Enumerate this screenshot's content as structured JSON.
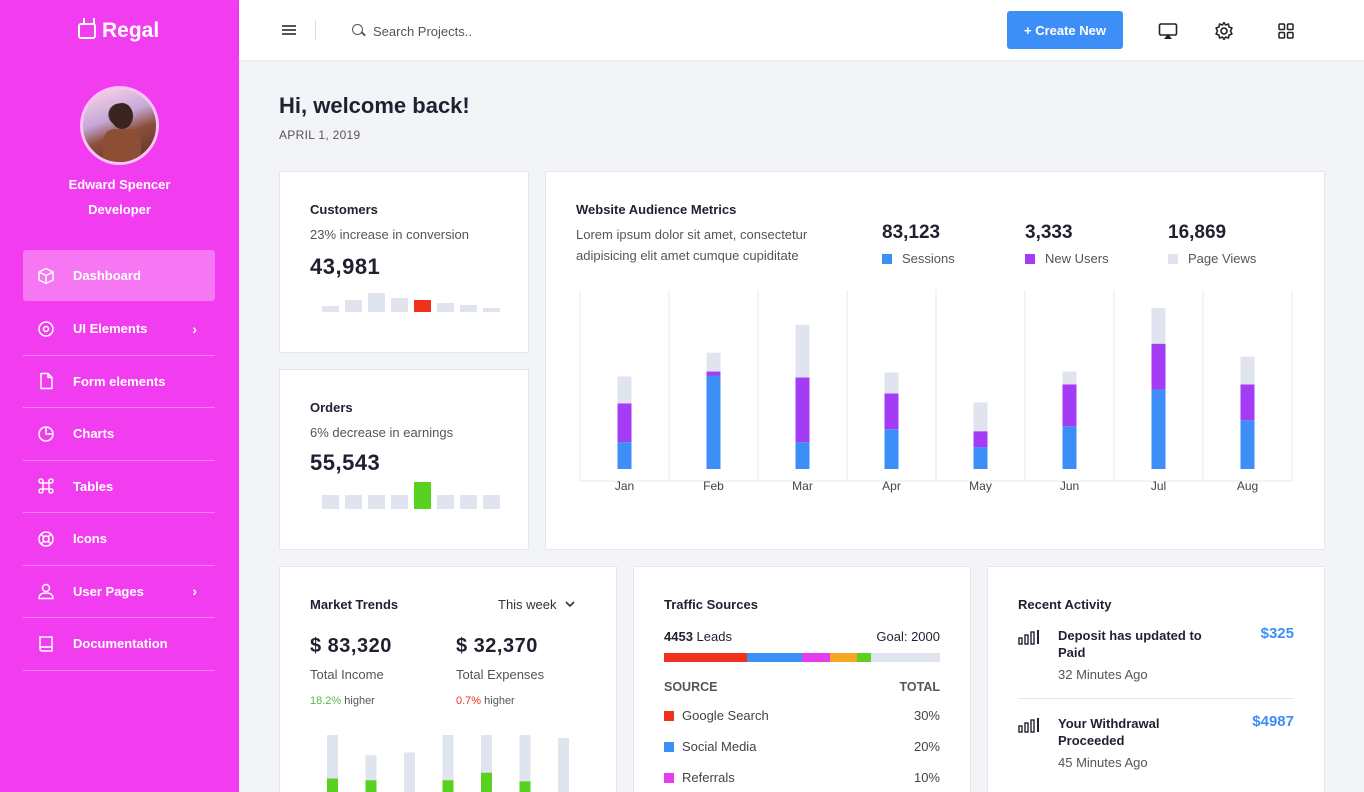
{
  "brand": "Regal",
  "user": {
    "name": "Edward Spencer",
    "role": "Developer"
  },
  "nav": [
    {
      "label": "Dashboard",
      "icon": "cube-icon",
      "active": true,
      "chevron": false
    },
    {
      "label": "UI Elements",
      "icon": "target-icon",
      "chevron": true
    },
    {
      "label": "Form elements",
      "icon": "file-icon",
      "chevron": false
    },
    {
      "label": "Charts",
      "icon": "pie-chart-icon",
      "chevron": false
    },
    {
      "label": "Tables",
      "icon": "command-icon",
      "chevron": false
    },
    {
      "label": "Icons",
      "icon": "life-buoy-icon",
      "chevron": false
    },
    {
      "label": "User Pages",
      "icon": "user-icon",
      "chevron": true
    },
    {
      "label": "Documentation",
      "icon": "book-icon",
      "chevron": false
    }
  ],
  "chevron_glyph": "›",
  "topbar": {
    "search_placeholder": "Search Projects..",
    "create_label": "+ Create New"
  },
  "greeting": "Hi, welcome back!",
  "date": "APRIL 1, 2019",
  "customers": {
    "title": "Customers",
    "subtitle": "23% increase in conversion",
    "value": "43,981",
    "bars": [
      0.25,
      0.55,
      0.85,
      0.65,
      0.55,
      0.4,
      0.3,
      0.2
    ],
    "highlight": 4,
    "highlight_color": "#f0311c"
  },
  "orders": {
    "title": "Orders",
    "subtitle": "6% decrease in earnings",
    "value": "55,543",
    "bars": [
      0.5,
      0.5,
      0.5,
      0.5,
      1.0,
      0.5,
      0.5,
      0.5
    ],
    "highlight": 4,
    "highlight_color": "#58d120"
  },
  "audience": {
    "title": "Website Audience Metrics",
    "desc_line1": "Lorem ipsum dolor sit amet, consectetur",
    "desc_line2": "adipisicing elit amet cumque cupiditate",
    "metrics": [
      {
        "value": "83,123",
        "label": "Sessions",
        "color": "#3d8ef7"
      },
      {
        "value": "3,333",
        "label": "New Users",
        "color": "#a43cf5"
      },
      {
        "value": "16,869",
        "label": "Page Views",
        "color": "#e0e4ee"
      }
    ]
  },
  "chart_data": {
    "type": "bar",
    "stacked": true,
    "categories": [
      "Jan",
      "Feb",
      "Mar",
      "Apr",
      "May",
      "Jun",
      "Jul",
      "Aug"
    ],
    "series": [
      {
        "name": "Sessions",
        "color": "#3d8ef7",
        "values": [
          27,
          94,
          27,
          40,
          22,
          43,
          80,
          49
        ]
      },
      {
        "name": "New Users",
        "color": "#a43cf5",
        "values": [
          39,
          4,
          65,
          36,
          16,
          42,
          46,
          36
        ]
      },
      {
        "name": "Page Views",
        "color": "#e0e4ee",
        "values": [
          27,
          19,
          53,
          21,
          29,
          13,
          36,
          28
        ]
      }
    ],
    "ylim": [
      0,
      180
    ]
  },
  "market": {
    "title": "Market Trends",
    "period": "This week",
    "income": "$ 83,320",
    "income_label": "Total Income",
    "income_pct": "18.2%",
    "income_suffix": "higher",
    "expense": "$ 32,370",
    "expense_label": "Total Expenses",
    "expense_pct": "0.7%",
    "expense_suffix": "higher",
    "bars": [
      {
        "grey": 1.0,
        "green": 0.25
      },
      {
        "grey": 0.65,
        "green": 0.22
      },
      {
        "grey": 0.7,
        "green": 0
      },
      {
        "grey": 1.0,
        "green": 0.22
      },
      {
        "grey": 1.0,
        "green": 0.35
      },
      {
        "grey": 1.0,
        "green": 0.2
      },
      {
        "grey": 0.95,
        "green": 0.0
      }
    ]
  },
  "traffic": {
    "title": "Traffic Sources",
    "leads": "4453",
    "leads_label": "Leads",
    "goal": "Goal: 2000",
    "segments": [
      {
        "color": "#f0311c",
        "pct": 30
      },
      {
        "color": "#3d8ef7",
        "pct": 20
      },
      {
        "color": "#e63cf0",
        "pct": 10
      },
      {
        "color": "#f5a623",
        "pct": 10
      },
      {
        "color": "#58d120",
        "pct": 5
      }
    ],
    "source_header": "SOURCE",
    "total_header": "TOTAL",
    "rows": [
      {
        "label": "Google Search",
        "value": "30%",
        "color": "#f0311c"
      },
      {
        "label": "Social Media",
        "value": "20%",
        "color": "#3d8ef7"
      },
      {
        "label": "Referrals",
        "value": "10%",
        "color": "#e63cf0"
      }
    ]
  },
  "activity": {
    "title": "Recent Activity",
    "items": [
      {
        "title": "Deposit has updated to Paid",
        "time": "32 Minutes Ago",
        "amount": "$325"
      },
      {
        "title": "Your Withdrawal Proceeded",
        "time": "45 Minutes Ago",
        "amount": "$4987"
      }
    ]
  }
}
